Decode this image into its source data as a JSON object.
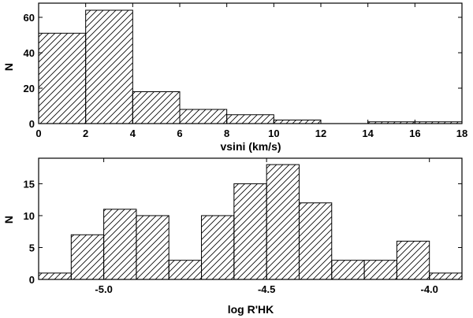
{
  "chart_data": [
    {
      "type": "bar",
      "histogram": true,
      "xlabel": "vsini (km/s)",
      "ylabel": "N",
      "xlim": [
        0,
        18
      ],
      "ylim": [
        0,
        68
      ],
      "xticks": [
        0,
        2,
        4,
        6,
        8,
        10,
        12,
        14,
        16,
        18
      ],
      "yticks": [
        0,
        20,
        40,
        60
      ],
      "bins": [
        {
          "x0": 0,
          "x1": 2,
          "count": 51
        },
        {
          "x0": 2,
          "x1": 4,
          "count": 64
        },
        {
          "x0": 4,
          "x1": 6,
          "count": 18
        },
        {
          "x0": 6,
          "x1": 8,
          "count": 8
        },
        {
          "x0": 8,
          "x1": 10,
          "count": 5
        },
        {
          "x0": 10,
          "x1": 12,
          "count": 2
        },
        {
          "x0": 12,
          "x1": 14,
          "count": 0
        },
        {
          "x0": 14,
          "x1": 16,
          "count": 1
        },
        {
          "x0": 16,
          "x1": 18,
          "count": 1
        }
      ],
      "grid": false
    },
    {
      "type": "bar",
      "histogram": true,
      "xlabel": "log R'HK",
      "ylabel": "N",
      "xlim": [
        -5.2,
        -3.9
      ],
      "ylim": [
        0,
        19
      ],
      "xticks": [
        -5.0,
        -4.5,
        -4.0
      ],
      "xtick_labels": [
        "-5.0",
        "-4.5",
        "-4.0"
      ],
      "yticks": [
        0,
        5,
        10,
        15
      ],
      "bins": [
        {
          "x0": -5.2,
          "x1": -5.1,
          "count": 1
        },
        {
          "x0": -5.1,
          "x1": -5.0,
          "count": 7
        },
        {
          "x0": -5.0,
          "x1": -4.9,
          "count": 11
        },
        {
          "x0": -4.9,
          "x1": -4.8,
          "count": 10
        },
        {
          "x0": -4.8,
          "x1": -4.7,
          "count": 3
        },
        {
          "x0": -4.7,
          "x1": -4.6,
          "count": 10
        },
        {
          "x0": -4.6,
          "x1": -4.5,
          "count": 15
        },
        {
          "x0": -4.5,
          "x1": -4.4,
          "count": 18
        },
        {
          "x0": -4.4,
          "x1": -4.3,
          "count": 12
        },
        {
          "x0": -4.3,
          "x1": -4.2,
          "count": 3
        },
        {
          "x0": -4.2,
          "x1": -4.1,
          "count": 3
        },
        {
          "x0": -4.1,
          "x1": -4.0,
          "count": 6
        },
        {
          "x0": -4.0,
          "x1": -3.9,
          "count": 1
        }
      ],
      "grid": false
    }
  ]
}
